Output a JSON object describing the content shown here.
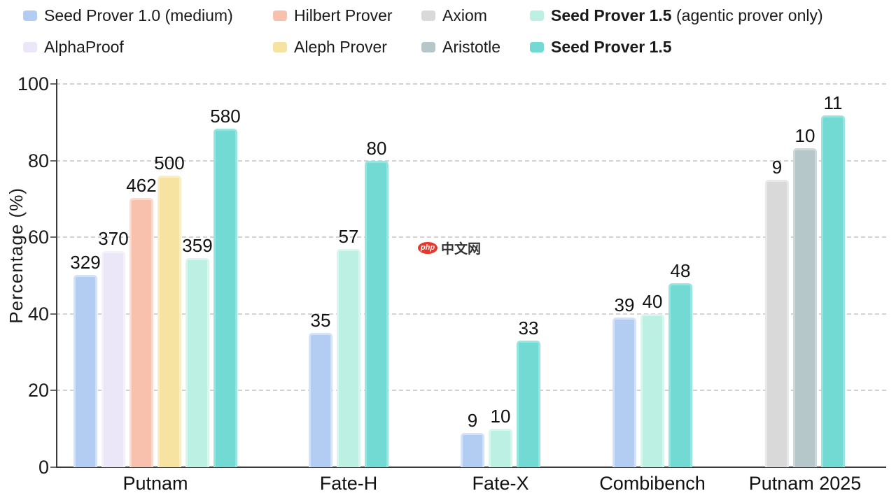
{
  "watermark": {
    "badge": "php",
    "text": "中文网",
    "badge_color": "#e5372c"
  },
  "chart_data": {
    "type": "bar",
    "title": "",
    "xlabel": "",
    "ylabel": "Percentage (%)",
    "ylim": [
      0,
      100
    ],
    "yticks": [
      0,
      20,
      40,
      60,
      80,
      100
    ],
    "grid": "horizontal-dashed",
    "legend_position": "top-two-rows",
    "series": [
      {
        "key": "seed10",
        "name": "Seed Prover 1.0 (medium)",
        "suffix": "",
        "bold": false,
        "color": "#b3cdf2",
        "edge": "#d3e2f8",
        "legend_row": 1,
        "legend_col": 1
      },
      {
        "key": "hilbert",
        "name": "Hilbert Prover",
        "suffix": "",
        "bold": false,
        "color": "#f8c1ae",
        "edge": "#fbdacd",
        "legend_row": 1,
        "legend_col": 2
      },
      {
        "key": "axiom",
        "name": "Axiom",
        "suffix": "",
        "bold": false,
        "color": "#d9d9d9",
        "edge": "#e8e8e8",
        "legend_row": 1,
        "legend_col": 3
      },
      {
        "key": "seed15a",
        "name": "Seed Prover 1.5",
        "suffix": " (agentic prover only)",
        "bold": true,
        "color": "#bbf0e2",
        "edge": "#d7f7ee",
        "legend_row": 1,
        "legend_col": 4
      },
      {
        "key": "alphaproof",
        "name": "AlphaProof",
        "suffix": "",
        "bold": false,
        "color": "#ebe7f8",
        "edge": "#f4f1fb",
        "legend_row": 2,
        "legend_col": 1
      },
      {
        "key": "aleph",
        "name": "Aleph Prover",
        "suffix": "",
        "bold": false,
        "color": "#f6e3a1",
        "edge": "#faeec6",
        "legend_row": 2,
        "legend_col": 2
      },
      {
        "key": "aristotle",
        "name": "Aristotle",
        "suffix": "",
        "bold": false,
        "color": "#b6c7c9",
        "edge": "#ccd8d9",
        "legend_row": 2,
        "legend_col": 3
      },
      {
        "key": "seed15",
        "name": "Seed Prover 1.5",
        "suffix": "",
        "bold": true,
        "color": "#72d9d3",
        "edge": "#97e5e0",
        "legend_row": 2,
        "legend_col": 4
      }
    ],
    "groups": [
      {
        "category": "Putnam",
        "bars": [
          {
            "series": "seed10",
            "label": "329",
            "percent": 50.1
          },
          {
            "series": "alphaproof",
            "label": "370",
            "percent": 56.3
          },
          {
            "series": "hilbert",
            "label": "462",
            "percent": 70.3
          },
          {
            "series": "aleph",
            "label": "500",
            "percent": 76.1
          },
          {
            "series": "seed15a",
            "label": "359",
            "percent": 54.6
          },
          {
            "series": "seed15",
            "label": "580",
            "percent": 88.3
          }
        ]
      },
      {
        "category": "Fate-H",
        "bars": [
          {
            "series": "seed10",
            "label": "35",
            "percent": 35
          },
          {
            "series": "seed15a",
            "label": "57",
            "percent": 57
          },
          {
            "series": "seed15",
            "label": "80",
            "percent": 80
          }
        ]
      },
      {
        "category": "Fate-X",
        "bars": [
          {
            "series": "seed10",
            "label": "9",
            "percent": 9
          },
          {
            "series": "seed15a",
            "label": "10",
            "percent": 10
          },
          {
            "series": "seed15",
            "label": "33",
            "percent": 33
          }
        ]
      },
      {
        "category": "Combibench",
        "bars": [
          {
            "series": "seed10",
            "label": "39",
            "percent": 39
          },
          {
            "series": "seed15a",
            "label": "40",
            "percent": 40
          },
          {
            "series": "seed15",
            "label": "48",
            "percent": 48
          }
        ]
      },
      {
        "category": "Putnam 2025",
        "bars": [
          {
            "series": "axiom",
            "label": "9",
            "percent": 75
          },
          {
            "series": "aristotle",
            "label": "10",
            "percent": 83.3
          },
          {
            "series": "seed15",
            "label": "11",
            "percent": 91.7
          }
        ]
      }
    ]
  }
}
